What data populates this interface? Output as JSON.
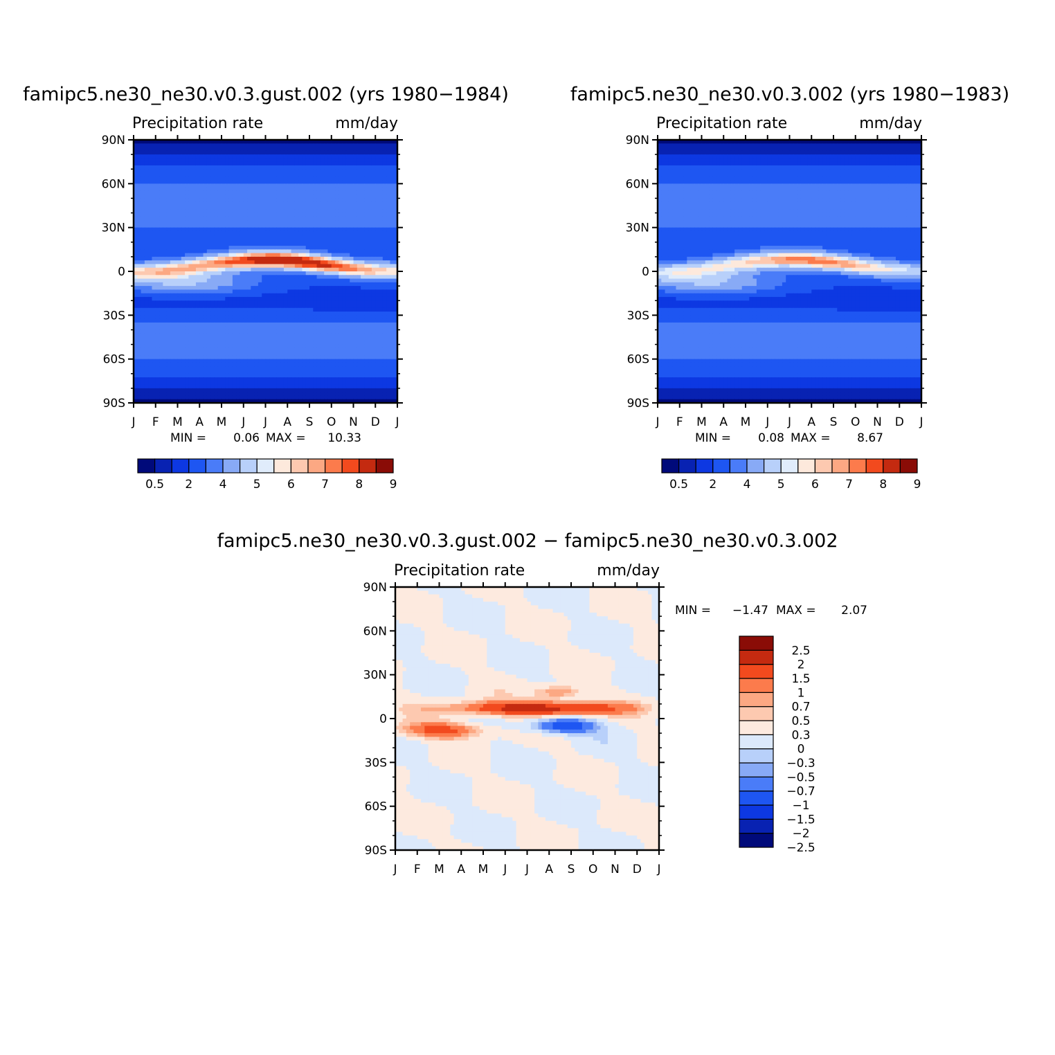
{
  "units": "mm/day",
  "variable": "Precipitation rate",
  "colors": {
    "abs_levels": [
      "#000a7a",
      "#0822b2",
      "#0d38e2",
      "#1e56f2",
      "#4a7cf8",
      "#88aaf6",
      "#b8d0fa",
      "#e0ecfb",
      "#fde9dc",
      "#fdc9b0",
      "#fca883",
      "#fc7b4c",
      "#f24a1e",
      "#c42a10",
      "#8a0c06"
    ],
    "diff_levels": [
      "#000a7a",
      "#0822b2",
      "#0d38e2",
      "#1e56f2",
      "#4a7cf8",
      "#88aaf6",
      "#b8d0fa",
      "#dce9fb",
      "#fdeadf",
      "#fdc9b0",
      "#fca883",
      "#fc7b4c",
      "#f24a1e",
      "#c42a10",
      "#8a0c06"
    ]
  },
  "chart_data": [
    {
      "type": "heatmap",
      "panel": "top-left",
      "title": "famipc5.ne30_ne30.v0.3.gust.002 (yrs 1980−1984)",
      "subtitle_left": "Precipitation rate",
      "subtitle_right": "mm/day",
      "x_ticks": [
        "J",
        "F",
        "M",
        "A",
        "M",
        "J",
        "J",
        "A",
        "S",
        "O",
        "N",
        "D",
        "J"
      ],
      "y_ticks": [
        "90N",
        "60N",
        "30N",
        "0",
        "30S",
        "60S",
        "90S"
      ],
      "y_range": [
        -90,
        90
      ],
      "stats": {
        "min_label": "MIN =",
        "min": "0.06",
        "max_label": "MAX =",
        "max": "10.33"
      },
      "colorbar": {
        "orientation": "horizontal",
        "labels": [
          "0.5",
          "2",
          "4",
          "5",
          "6",
          "7",
          "8",
          "9"
        ]
      },
      "itcz_peak": 10.33
    },
    {
      "type": "heatmap",
      "panel": "top-right",
      "title": "famipc5.ne30_ne30.v0.3.002 (yrs 1980−1983)",
      "subtitle_left": "Precipitation rate",
      "subtitle_right": "mm/day",
      "x_ticks": [
        "J",
        "F",
        "M",
        "A",
        "M",
        "J",
        "J",
        "A",
        "S",
        "O",
        "N",
        "D",
        "J"
      ],
      "y_ticks": [
        "90N",
        "60N",
        "30N",
        "0",
        "30S",
        "60S",
        "90S"
      ],
      "y_range": [
        -90,
        90
      ],
      "stats": {
        "min_label": "MIN =",
        "min": "0.08",
        "max_label": "MAX =",
        "max": "8.67"
      },
      "colorbar": {
        "orientation": "horizontal",
        "labels": [
          "0.5",
          "2",
          "4",
          "5",
          "6",
          "7",
          "8",
          "9"
        ]
      },
      "itcz_peak": 8.67
    },
    {
      "type": "heatmap",
      "panel": "bottom",
      "title": "famipc5.ne30_ne30.v0.3.gust.002 − famipc5.ne30_ne30.v0.3.002",
      "subtitle_left": "Precipitation rate",
      "subtitle_right": "mm/day",
      "x_ticks": [
        "J",
        "F",
        "M",
        "A",
        "M",
        "J",
        "J",
        "A",
        "S",
        "O",
        "N",
        "D",
        "J"
      ],
      "y_ticks": [
        "90N",
        "60N",
        "30N",
        "0",
        "30S",
        "60S",
        "90S"
      ],
      "y_range": [
        -90,
        90
      ],
      "stats": {
        "min_label": "MIN =",
        "min": "−1.47",
        "max_label": "MAX =",
        "max": "2.07"
      },
      "colorbar": {
        "orientation": "vertical",
        "labels": [
          "2.5",
          "2",
          "1.5",
          "1",
          "0.7",
          "0.5",
          "0.3",
          "0",
          "−0.3",
          "−0.5",
          "−0.7",
          "−1",
          "−1.5",
          "−2",
          "−2.5"
        ]
      }
    }
  ]
}
